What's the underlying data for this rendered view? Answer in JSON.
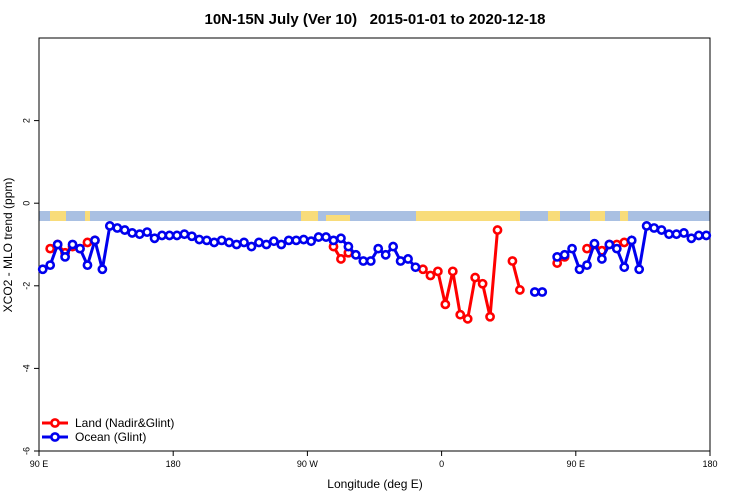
{
  "chart_data": {
    "type": "line",
    "title": "10N-15N July (Ver 10)   2015-01-01 to 2020-12-18",
    "x_label": "Longitude (deg E)",
    "y_label": "XCO2 - MLO trend (ppm)",
    "xlim": [
      90,
      540
    ],
    "xticks": [
      {
        "value": 90,
        "label": "90 E"
      },
      {
        "value": 180,
        "label": "180"
      },
      {
        "value": 270,
        "label": "90 W"
      },
      {
        "value": 360,
        "label": "0"
      },
      {
        "value": 450,
        "label": "90 E"
      },
      {
        "value": 540,
        "label": "180"
      }
    ],
    "ylim": [
      -6,
      4
    ],
    "yticks": [
      -6,
      -4,
      -2,
      0,
      2
    ],
    "legend": "bottom-left",
    "x": [
      92.5,
      97.5,
      102.5,
      107.5,
      112.5,
      117.5,
      122.5,
      127.5,
      132.5,
      137.5,
      142.5,
      147.5,
      152.5,
      157.5,
      162.5,
      167.5,
      172.5,
      177.5,
      182.5,
      187.5,
      192.5,
      197.5,
      202.5,
      207.5,
      212.5,
      217.5,
      222.5,
      227.5,
      232.5,
      237.5,
      242.5,
      247.5,
      252.5,
      257.5,
      262.5,
      267.5,
      272.5,
      277.5,
      282.5,
      287.5,
      292.5,
      297.5,
      302.5,
      307.5,
      312.5,
      317.5,
      322.5,
      327.5,
      332.5,
      337.5,
      342.5,
      347.5,
      352.5,
      357.5,
      362.5,
      367.5,
      372.5,
      377.5,
      382.5,
      387.5,
      392.5,
      397.5,
      402.5,
      407.5,
      412.5,
      417.5,
      422.5,
      427.5,
      432.5,
      437.5,
      442.5,
      447.5,
      452.5,
      457.5,
      462.5,
      467.5,
      472.5,
      477.5,
      482.5,
      487.5,
      492.5,
      497.5,
      502.5,
      507.5,
      512.5,
      517.5,
      522.5,
      527.5,
      532.5,
      537.5
    ],
    "series": [
      {
        "name": "Land (Nadir&Glint)",
        "color": "#ff0000",
        "values": [
          null,
          -1.1,
          -1.0,
          -1.2,
          -1.05,
          -1.1,
          -0.95,
          -0.9,
          null,
          null,
          null,
          null,
          null,
          null,
          null,
          null,
          null,
          null,
          null,
          null,
          null,
          null,
          null,
          null,
          null,
          null,
          null,
          null,
          null,
          null,
          null,
          null,
          null,
          null,
          null,
          null,
          null,
          null,
          null,
          -1.05,
          -1.35,
          -1.2,
          null,
          null,
          null,
          null,
          null,
          null,
          null,
          null,
          null,
          -1.6,
          -1.75,
          -1.65,
          -2.45,
          -1.65,
          -2.7,
          -2.8,
          -1.8,
          -1.95,
          -2.75,
          -0.65,
          null,
          -1.4,
          -2.1,
          null,
          null,
          null,
          null,
          -1.45,
          -1.3,
          null,
          null,
          -1.1,
          -1.0,
          -1.15,
          -1.0,
          -1.0,
          -0.95,
          null,
          null,
          null,
          null,
          null,
          null,
          null,
          null,
          null,
          null,
          null
        ]
      },
      {
        "name": "Ocean (Glint)",
        "color": "#0000ee",
        "values": [
          -1.6,
          -1.5,
          -1.0,
          -1.3,
          -1.0,
          -1.1,
          -1.5,
          -0.9,
          -1.6,
          -0.55,
          -0.6,
          -0.65,
          -0.72,
          -0.75,
          -0.7,
          -0.85,
          -0.78,
          -0.78,
          -0.78,
          -0.75,
          -0.8,
          -0.88,
          -0.9,
          -0.95,
          -0.9,
          -0.95,
          -1.0,
          -0.95,
          -1.05,
          -0.95,
          -1.0,
          -0.92,
          -1.0,
          -0.9,
          -0.9,
          -0.88,
          -0.92,
          -0.82,
          -0.82,
          -0.9,
          -0.85,
          -1.05,
          -1.25,
          -1.4,
          -1.4,
          -1.1,
          -1.25,
          -1.05,
          -1.4,
          -1.35,
          -1.55,
          null,
          null,
          null,
          null,
          null,
          null,
          null,
          null,
          null,
          null,
          null,
          null,
          null,
          null,
          null,
          -2.15,
          -2.15,
          null,
          -1.3,
          -1.25,
          -1.1,
          -1.6,
          -1.5,
          -0.98,
          -1.35,
          -1.0,
          -1.1,
          -1.55,
          -0.9,
          -1.6,
          -0.55,
          -0.6,
          -0.65,
          -0.75,
          -0.75,
          -0.72,
          -0.85,
          -0.78,
          -0.78
        ]
      }
    ]
  }
}
